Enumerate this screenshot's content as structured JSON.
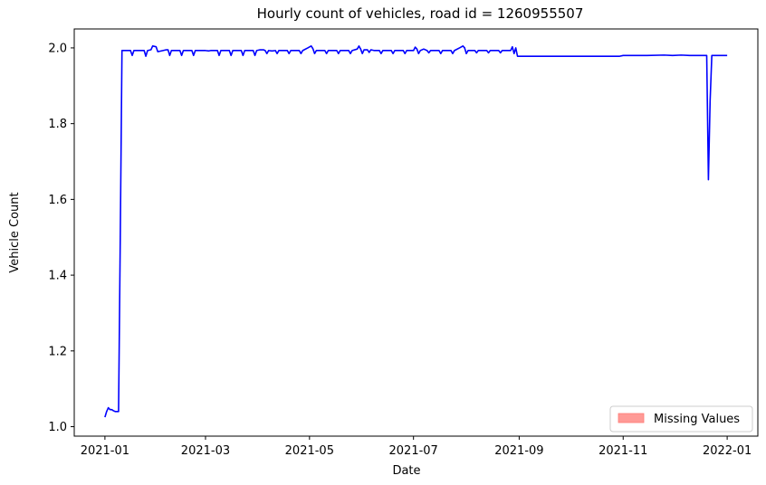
{
  "chart_data": {
    "type": "line",
    "title": "Hourly count of vehicles, road id = 1260955507",
    "xlabel": "Date",
    "ylabel": "Vehicle Count",
    "x_axis_type": "date",
    "xlim": [
      "2020-12-14",
      "2022-01-19"
    ],
    "ylim": [
      0.975,
      2.05
    ],
    "x_ticks": [
      "2021-01",
      "2021-03",
      "2021-05",
      "2021-07",
      "2021-09",
      "2021-11",
      "2022-01"
    ],
    "x_tick_dates": [
      "2021-01-01",
      "2021-03-01",
      "2021-05-01",
      "2021-07-01",
      "2021-09-01",
      "2021-11-01",
      "2022-01-01"
    ],
    "y_ticks": [
      1.0,
      1.2,
      1.4,
      1.6,
      1.8,
      2.0
    ],
    "y_tick_labels": [
      "1.0",
      "1.2",
      "1.4",
      "1.6",
      "1.8",
      "2.0"
    ],
    "grid": false,
    "legend": {
      "position": "lower-right",
      "entries": [
        {
          "label": "Missing Values",
          "color": "#ff9a96",
          "shape": "patch"
        }
      ]
    },
    "series": [
      {
        "color": "#0000ff",
        "points": [
          [
            "2021-01-01",
            1.025
          ],
          [
            "2021-01-02",
            1.04
          ],
          [
            "2021-01-03",
            1.05
          ],
          [
            "2021-01-04",
            1.045
          ],
          [
            "2021-01-05",
            1.045
          ],
          [
            "2021-01-06",
            1.042
          ],
          [
            "2021-01-07",
            1.04
          ],
          [
            "2021-01-08",
            1.04
          ],
          [
            "2021-01-09",
            1.04
          ],
          [
            "2021-01-10",
            1.5
          ],
          [
            "2021-01-11",
            1.993
          ],
          [
            "2021-01-12",
            1.993
          ],
          [
            "2021-01-14",
            1.993
          ],
          [
            "2021-01-16",
            1.993
          ],
          [
            "2021-01-17",
            1.98
          ],
          [
            "2021-01-18",
            1.993
          ],
          [
            "2021-01-20",
            1.993
          ],
          [
            "2021-01-22",
            1.993
          ],
          [
            "2021-01-24",
            1.993
          ],
          [
            "2021-01-25",
            1.978
          ],
          [
            "2021-01-26",
            1.993
          ],
          [
            "2021-01-28",
            1.995
          ],
          [
            "2021-01-29",
            2.005
          ],
          [
            "2021-01-31",
            2.003
          ],
          [
            "2021-02-01",
            1.99
          ],
          [
            "2021-02-04",
            1.993
          ],
          [
            "2021-02-06",
            1.995
          ],
          [
            "2021-02-07",
            1.995
          ],
          [
            "2021-02-08",
            1.98
          ],
          [
            "2021-02-09",
            1.993
          ],
          [
            "2021-02-14",
            1.993
          ],
          [
            "2021-02-15",
            1.98
          ],
          [
            "2021-02-16",
            1.993
          ],
          [
            "2021-02-21",
            1.993
          ],
          [
            "2021-02-22",
            1.98
          ],
          [
            "2021-02-23",
            1.993
          ],
          [
            "2021-03-01",
            1.993
          ],
          [
            "2021-03-03",
            1.992
          ],
          [
            "2021-03-04",
            1.993
          ],
          [
            "2021-03-08",
            1.993
          ],
          [
            "2021-03-09",
            1.98
          ],
          [
            "2021-03-10",
            1.993
          ],
          [
            "2021-03-15",
            1.993
          ],
          [
            "2021-03-16",
            1.98
          ],
          [
            "2021-03-17",
            1.993
          ],
          [
            "2021-03-22",
            1.993
          ],
          [
            "2021-03-23",
            1.98
          ],
          [
            "2021-03-24",
            1.993
          ],
          [
            "2021-03-29",
            1.993
          ],
          [
            "2021-03-30",
            1.98
          ],
          [
            "2021-03-31",
            1.993
          ],
          [
            "2021-04-02",
            1.995
          ],
          [
            "2021-04-04",
            1.995
          ],
          [
            "2021-04-05",
            1.993
          ],
          [
            "2021-04-06",
            1.985
          ],
          [
            "2021-04-07",
            1.993
          ],
          [
            "2021-04-09",
            1.992
          ],
          [
            "2021-04-11",
            1.993
          ],
          [
            "2021-04-12",
            1.985
          ],
          [
            "2021-04-13",
            1.993
          ],
          [
            "2021-04-18",
            1.993
          ],
          [
            "2021-04-19",
            1.985
          ],
          [
            "2021-04-20",
            1.993
          ],
          [
            "2021-04-25",
            1.993
          ],
          [
            "2021-04-26",
            1.985
          ],
          [
            "2021-04-27",
            1.993
          ],
          [
            "2021-04-30",
            2.0
          ],
          [
            "2021-05-02",
            2.005
          ],
          [
            "2021-05-03",
            1.998
          ],
          [
            "2021-05-04",
            1.985
          ],
          [
            "2021-05-05",
            1.993
          ],
          [
            "2021-05-10",
            1.993
          ],
          [
            "2021-05-11",
            1.985
          ],
          [
            "2021-05-12",
            1.993
          ],
          [
            "2021-05-17",
            1.993
          ],
          [
            "2021-05-18",
            1.985
          ],
          [
            "2021-05-19",
            1.993
          ],
          [
            "2021-05-24",
            1.993
          ],
          [
            "2021-05-25",
            1.985
          ],
          [
            "2021-05-26",
            1.993
          ],
          [
            "2021-05-29",
            1.997
          ],
          [
            "2021-05-30",
            2.005
          ],
          [
            "2021-05-31",
            1.997
          ],
          [
            "2021-06-01",
            1.985
          ],
          [
            "2021-06-02",
            1.995
          ],
          [
            "2021-06-04",
            1.995
          ],
          [
            "2021-06-05",
            1.988
          ],
          [
            "2021-06-06",
            1.995
          ],
          [
            "2021-06-08",
            1.993
          ],
          [
            "2021-06-11",
            1.993
          ],
          [
            "2021-06-12",
            1.985
          ],
          [
            "2021-06-13",
            1.993
          ],
          [
            "2021-06-18",
            1.993
          ],
          [
            "2021-06-19",
            1.985
          ],
          [
            "2021-06-20",
            1.993
          ],
          [
            "2021-06-25",
            1.993
          ],
          [
            "2021-06-26",
            1.985
          ],
          [
            "2021-06-27",
            1.993
          ],
          [
            "2021-07-01",
            1.993
          ],
          [
            "2021-07-02",
            2.002
          ],
          [
            "2021-07-03",
            1.997
          ],
          [
            "2021-07-04",
            1.985
          ],
          [
            "2021-07-05",
            1.993
          ],
          [
            "2021-07-07",
            1.997
          ],
          [
            "2021-07-09",
            1.993
          ],
          [
            "2021-07-10",
            1.987
          ],
          [
            "2021-07-11",
            1.993
          ],
          [
            "2021-07-16",
            1.993
          ],
          [
            "2021-07-17",
            1.985
          ],
          [
            "2021-07-18",
            1.993
          ],
          [
            "2021-07-23",
            1.993
          ],
          [
            "2021-07-24",
            1.985
          ],
          [
            "2021-07-25",
            1.993
          ],
          [
            "2021-07-28",
            2.0
          ],
          [
            "2021-07-30",
            2.005
          ],
          [
            "2021-07-31",
            2.0
          ],
          [
            "2021-08-01",
            1.985
          ],
          [
            "2021-08-02",
            1.993
          ],
          [
            "2021-08-06",
            1.993
          ],
          [
            "2021-08-07",
            1.987
          ],
          [
            "2021-08-08",
            1.993
          ],
          [
            "2021-08-13",
            1.993
          ],
          [
            "2021-08-14",
            1.987
          ],
          [
            "2021-08-15",
            1.993
          ],
          [
            "2021-08-20",
            1.993
          ],
          [
            "2021-08-21",
            1.987
          ],
          [
            "2021-08-22",
            1.993
          ],
          [
            "2021-08-27",
            1.993
          ],
          [
            "2021-08-28",
            2.003
          ],
          [
            "2021-08-29",
            1.985
          ],
          [
            "2021-08-30",
            2.0
          ],
          [
            "2021-08-31",
            1.978
          ],
          [
            "2021-09-15",
            1.978
          ],
          [
            "2021-10-01",
            1.978
          ],
          [
            "2021-10-15",
            1.978
          ],
          [
            "2021-10-30",
            1.978
          ],
          [
            "2021-11-01",
            1.98
          ],
          [
            "2021-11-15",
            1.98
          ],
          [
            "2021-11-25",
            1.981
          ],
          [
            "2021-11-30",
            1.98
          ],
          [
            "2021-12-05",
            1.981
          ],
          [
            "2021-12-10",
            1.98
          ],
          [
            "2021-12-20",
            1.98
          ],
          [
            "2021-12-21",
            1.652
          ],
          [
            "2021-12-22",
            1.86
          ],
          [
            "2021-12-23",
            1.98
          ],
          [
            "2021-12-28",
            1.98
          ],
          [
            "2022-01-01",
            1.98
          ]
        ]
      }
    ]
  }
}
